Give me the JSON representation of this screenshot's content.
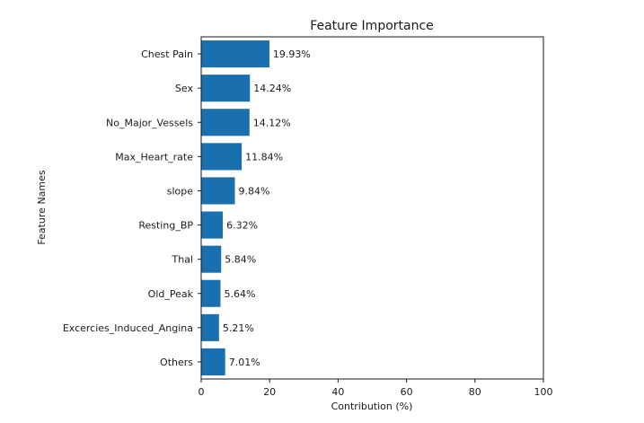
{
  "chart_data": {
    "type": "bar",
    "orientation": "horizontal",
    "title": "Feature Importance",
    "xlabel": "Contribution (%)",
    "ylabel": "Feature Names",
    "xlim": [
      0,
      100
    ],
    "xticks": [
      "0",
      "20",
      "40",
      "60",
      "80",
      "100"
    ],
    "categories": [
      "Chest Pain",
      "Sex",
      "No_Major_Vessels",
      "Max_Heart_rate",
      "slope",
      "Resting_BP",
      "Thal",
      "Old_Peak",
      "Excercies_Induced_Angina",
      "Others"
    ],
    "values": [
      19.93,
      14.24,
      14.12,
      11.84,
      9.84,
      6.32,
      5.84,
      5.64,
      5.21,
      7.01
    ],
    "data_labels": [
      "19.93%",
      "14.24%",
      "14.12%",
      "11.84%",
      "9.84%",
      "6.32%",
      "5.84%",
      "5.64%",
      "5.21%",
      "7.01%"
    ],
    "bar_color": "#1a6fae",
    "grid": false,
    "legend": "none"
  }
}
